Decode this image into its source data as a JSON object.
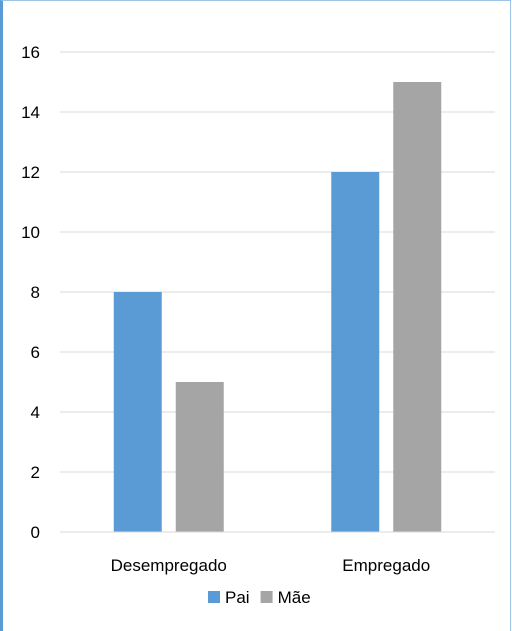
{
  "colors": {
    "pai": "#5B9BD5",
    "mae": "#A5A5A5",
    "grid": "#D9D9D9",
    "frame": "#5B9BD5"
  },
  "chart_data": {
    "type": "bar",
    "categories": [
      "Desempregado",
      "Empregado"
    ],
    "series": [
      {
        "name": "Pai",
        "values": [
          8,
          12
        ],
        "color": "#5B9BD5"
      },
      {
        "name": "Mãe",
        "values": [
          5,
          15
        ],
        "color": "#A5A5A5"
      }
    ],
    "title": "",
    "xlabel": "",
    "ylabel": "",
    "ylim": [
      0,
      16
    ],
    "yticks": [
      0,
      2,
      4,
      6,
      8,
      10,
      12,
      14,
      16
    ],
    "grid": true,
    "legend": "bottom"
  }
}
